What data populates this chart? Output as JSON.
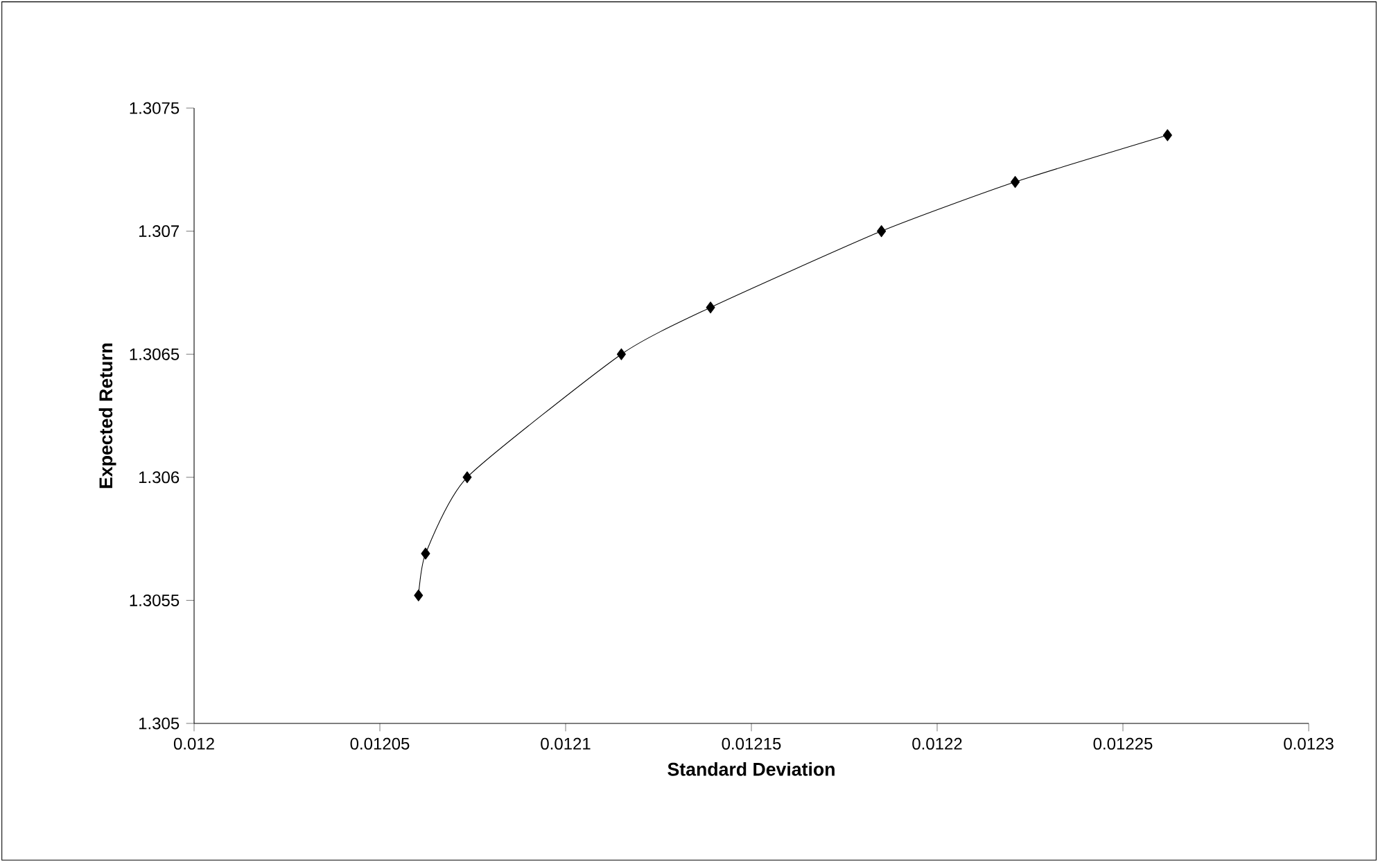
{
  "chart_data": {
    "type": "line",
    "xlabel": "Standard Deviation",
    "ylabel": "Expected Return",
    "x": [
      0.0120604,
      0.0120623,
      0.0120735,
      0.012115,
      0.012139,
      0.012185,
      0.012221,
      0.012262
    ],
    "series": [
      {
        "color": "#000000",
        "values": [
          1.30552,
          1.30569,
          1.306,
          1.3065,
          1.30669,
          1.307,
          1.3072,
          1.30739
        ]
      }
    ],
    "xlim": [
      0.012,
      0.0123
    ],
    "xticks": [
      0.012,
      0.01205,
      0.0121,
      0.01215,
      0.0122,
      0.01225,
      0.0123
    ],
    "ylim": [
      1.305,
      1.3075
    ],
    "yticks": [
      1.305,
      1.3055,
      1.306,
      1.3065,
      1.307,
      1.3075
    ],
    "marker": "diamond",
    "line_style": "solid",
    "grid": false
  }
}
